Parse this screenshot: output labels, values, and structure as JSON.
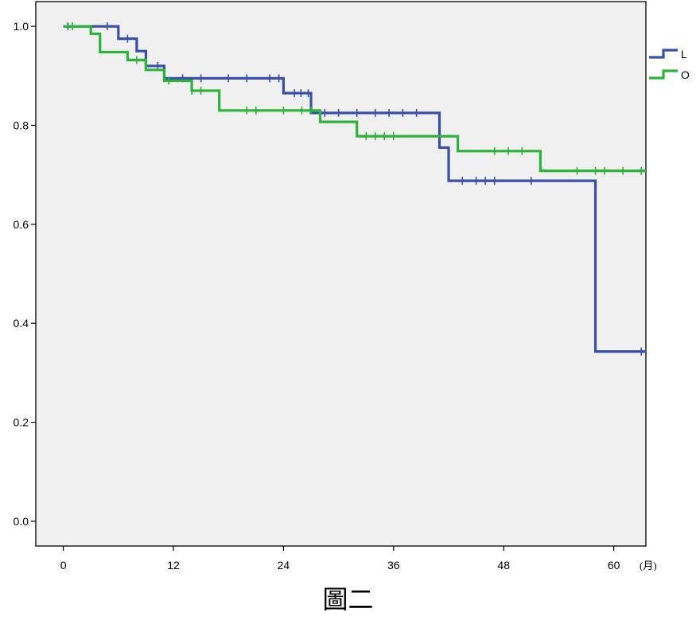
{
  "caption": "圖二",
  "chart_data": {
    "type": "line",
    "subtype": "kaplan-meier step",
    "xlabel": "",
    "x_unit_label": "(月)",
    "ylabel": "",
    "xlim": [
      -3,
      63.5
    ],
    "ylim": [
      -0.05,
      1.05
    ],
    "x_ticks": [
      0,
      12,
      24,
      36,
      48,
      60
    ],
    "y_ticks": [
      0.0,
      0.2,
      0.4,
      0.6,
      0.8,
      1.0
    ],
    "y_tick_labels": [
      "0.0",
      "0.2",
      "0.4",
      "0.6",
      "0.8",
      "1.0"
    ],
    "grid": false,
    "background": "#f0f0f0",
    "legend_position": "right",
    "series": [
      {
        "name": "L",
        "color": "#3a4fa8",
        "steps": [
          [
            0,
            1.0
          ],
          [
            6,
            0.975
          ],
          [
            8,
            0.95
          ],
          [
            9,
            0.92
          ],
          [
            11,
            0.895
          ],
          [
            24,
            0.865
          ],
          [
            27,
            0.825
          ],
          [
            41,
            0.755
          ],
          [
            42,
            0.688
          ],
          [
            58,
            0.343
          ],
          [
            63.5,
            0.343
          ]
        ],
        "censors": [
          [
            0.5,
            1.0
          ],
          [
            4.8,
            1.0
          ],
          [
            7,
            0.975
          ],
          [
            10.3,
            0.92
          ],
          [
            13,
            0.895
          ],
          [
            15,
            0.895
          ],
          [
            18,
            0.895
          ],
          [
            20,
            0.895
          ],
          [
            22.5,
            0.895
          ],
          [
            23.5,
            0.895
          ],
          [
            25.2,
            0.865
          ],
          [
            25.9,
            0.865
          ],
          [
            26.7,
            0.865
          ],
          [
            28.5,
            0.825
          ],
          [
            30,
            0.825
          ],
          [
            32,
            0.825
          ],
          [
            34,
            0.825
          ],
          [
            35.5,
            0.825
          ],
          [
            37,
            0.825
          ],
          [
            38.5,
            0.825
          ],
          [
            43.5,
            0.688
          ],
          [
            45,
            0.688
          ],
          [
            46,
            0.688
          ],
          [
            47,
            0.688
          ],
          [
            51,
            0.688
          ],
          [
            63,
            0.343
          ]
        ]
      },
      {
        "name": "O",
        "color": "#2db33a",
        "steps": [
          [
            0,
            1.0
          ],
          [
            3,
            0.985
          ],
          [
            4,
            0.948
          ],
          [
            7,
            0.932
          ],
          [
            9,
            0.912
          ],
          [
            11,
            0.89
          ],
          [
            14,
            0.87
          ],
          [
            17,
            0.83
          ],
          [
            28,
            0.807
          ],
          [
            32,
            0.778
          ],
          [
            43,
            0.748
          ],
          [
            52,
            0.708
          ],
          [
            63.5,
            0.708
          ]
        ],
        "censors": [
          [
            1,
            1.0
          ],
          [
            8,
            0.932
          ],
          [
            11.5,
            0.89
          ],
          [
            14,
            0.87
          ],
          [
            15,
            0.87
          ],
          [
            20,
            0.83
          ],
          [
            21,
            0.83
          ],
          [
            24,
            0.83
          ],
          [
            26,
            0.83
          ],
          [
            27,
            0.83
          ],
          [
            33,
            0.778
          ],
          [
            34,
            0.778
          ],
          [
            35,
            0.778
          ],
          [
            36,
            0.778
          ],
          [
            47,
            0.748
          ],
          [
            48.5,
            0.748
          ],
          [
            50,
            0.748
          ],
          [
            56,
            0.708
          ],
          [
            58,
            0.708
          ],
          [
            59,
            0.708
          ],
          [
            61,
            0.708
          ],
          [
            63,
            0.708
          ]
        ]
      }
    ]
  }
}
